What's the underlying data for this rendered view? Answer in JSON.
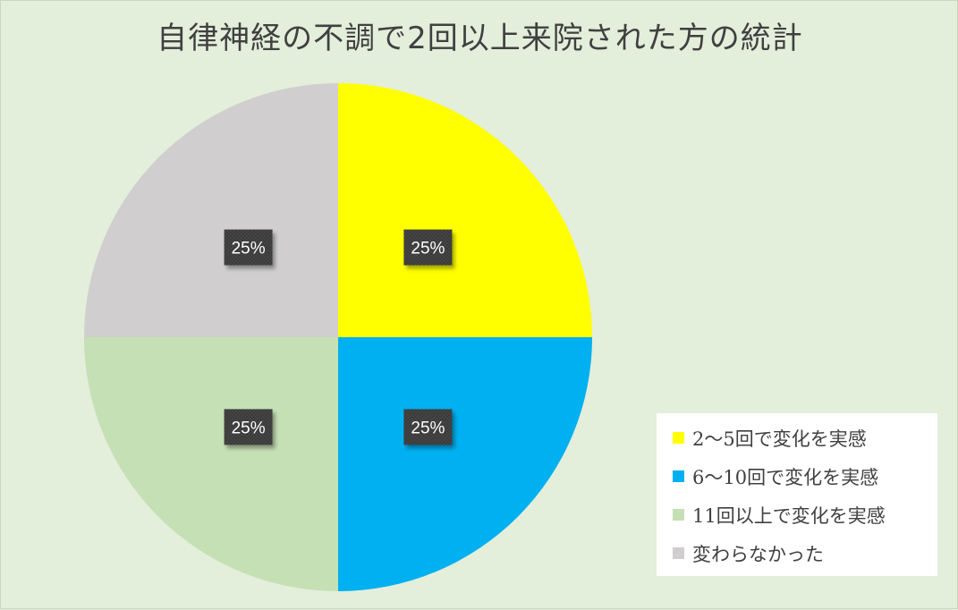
{
  "chart_data": {
    "type": "pie",
    "title": "自律神経の不調で2回以上来院された方の統計",
    "categories": [
      "2〜5回で変化を実感",
      "6〜10回で変化を実感",
      "11回以上で変化を実感",
      "変わらなかった"
    ],
    "values": [
      25,
      25,
      25,
      25
    ],
    "data_labels": [
      "25%",
      "25%",
      "25%",
      "25%"
    ],
    "colors": [
      "#ffff00",
      "#00b0f0",
      "#c5e0b4",
      "#d0cece"
    ],
    "start_angle": "12 o'clock",
    "direction": "clockwise",
    "legend_position": "bottom-right"
  }
}
